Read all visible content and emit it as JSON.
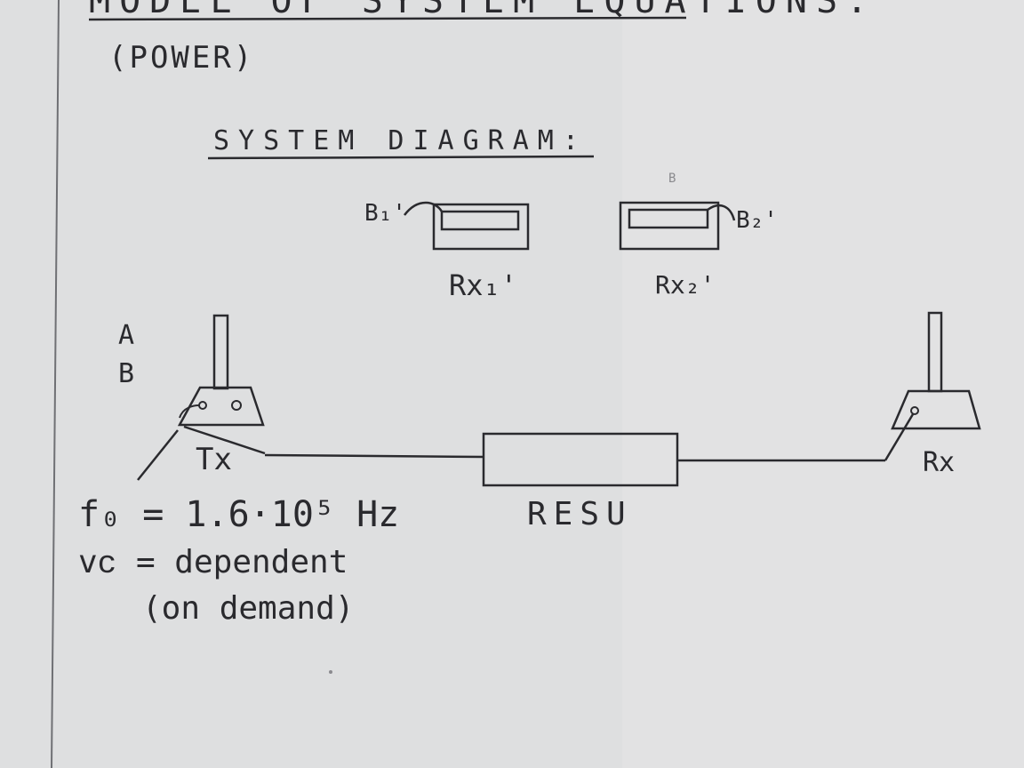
{
  "header": {
    "title": "MODEL OF SYSTEM EQUATIONS:",
    "subtitle": "(POWER)"
  },
  "diagram": {
    "title": "SYSTEM DIAGRAM:",
    "side_labels": [
      "A",
      "B"
    ],
    "receivers": [
      {
        "label": "Rx₁'",
        "lead_label": "B₁'"
      },
      {
        "label": "Rx₂'",
        "lead_label": "B₂'"
      }
    ],
    "faint_mark": "B",
    "transmitter": {
      "label": "Tx"
    },
    "receiver": {
      "label": "Rx"
    },
    "link_unit": {
      "label": "RESU"
    }
  },
  "notes": {
    "line1": "f₀ = 1.6·10⁵ Hz",
    "line2": "vᴄ = dependent",
    "line3": "(on demand)"
  },
  "colors": {
    "paper": "#dedfe0",
    "ink": "#2a2a2e",
    "margin_rule": "#6f7074"
  }
}
